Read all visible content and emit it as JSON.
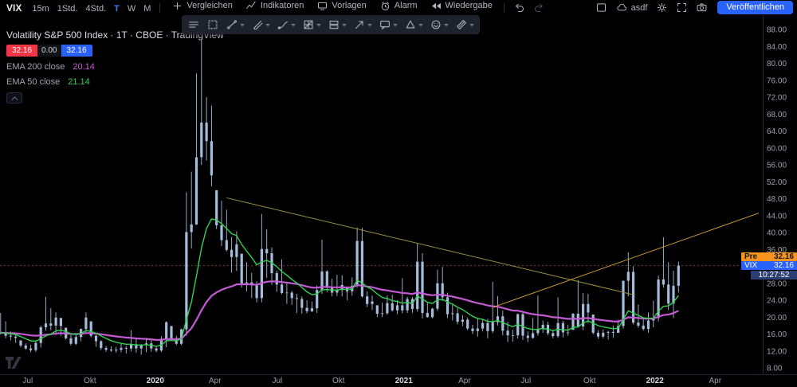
{
  "header": {
    "symbol": "VIX",
    "timeframes": [
      {
        "label": "15m",
        "active": false
      },
      {
        "label": "1Std.",
        "active": false
      },
      {
        "label": "4Std.",
        "active": false
      },
      {
        "label": "T",
        "active": true
      },
      {
        "label": "W",
        "active": false
      },
      {
        "label": "M",
        "active": false
      }
    ],
    "menu": [
      {
        "name": "compare-button",
        "icon": "compare-icon",
        "label": "Vergleichen"
      },
      {
        "name": "indicators-button",
        "icon": "indicators-icon",
        "label": "Indikatoren"
      },
      {
        "name": "templates-button",
        "icon": "templates-icon",
        "label": "Vorlagen"
      },
      {
        "name": "alert-button",
        "icon": "alarm-icon",
        "label": "Alarm"
      },
      {
        "name": "replay-button",
        "icon": "replay-icon",
        "label": "Wiedergabe"
      }
    ],
    "layout_name": "asdf",
    "publish_label": "Veröffentlichen"
  },
  "legend": {
    "title": "Volatility S&P 500 Index · 1T · CBOE · TradingView",
    "sell_price": "32.16",
    "spread": "0.00",
    "buy_price": "32.16",
    "ema200_label": "EMA 200 close",
    "ema200_value": "20.14",
    "ema50_label": "EMA 50 close",
    "ema50_value": "21.14"
  },
  "float_toolbar": {
    "tools": [
      {
        "icon": "lines-menu-icon",
        "name": "line-tools-button",
        "caret": false
      },
      {
        "icon": "marquee-icon",
        "name": "selection-tool-button",
        "caret": false
      },
      {
        "icon": "trendline-icon",
        "name": "trendline-tool-button",
        "caret": true
      },
      {
        "icon": "pitchfork-icon",
        "name": "pitchfork-tool-button",
        "caret": true
      },
      {
        "icon": "brush-icon",
        "name": "brush-tool-button",
        "caret": true
      },
      {
        "icon": "gann-icon",
        "name": "gann-tool-button",
        "caret": true
      },
      {
        "icon": "position-icon",
        "name": "position-tool-button",
        "caret": true
      },
      {
        "icon": "arrow-icon",
        "name": "arrow-tool-button",
        "caret": true
      },
      {
        "icon": "callout-icon",
        "name": "annotation-tool-button",
        "caret": true
      },
      {
        "icon": "shapes-icon",
        "name": "shapes-tool-button",
        "caret": true
      },
      {
        "icon": "emoji-icon",
        "name": "emoji-tool-button",
        "caret": true
      },
      {
        "icon": "measure-icon",
        "name": "measure-tool-button",
        "caret": true
      }
    ]
  },
  "price_scale": {
    "pre_label": "Pre",
    "pre_value": "32.16",
    "symbol_label": "VIX",
    "last_value": "32.16",
    "countdown": "10:27:52",
    "ticks": [
      "88.00",
      "84.00",
      "80.00",
      "76.00",
      "72.00",
      "68.00",
      "64.00",
      "60.00",
      "56.00",
      "52.00",
      "48.00",
      "44.00",
      "40.00",
      "36.00",
      "32.00",
      "28.00",
      "24.00",
      "20.00",
      "16.00",
      "12.00",
      "8.00"
    ]
  },
  "time_scale": {
    "ticks": [
      {
        "label": "Jul",
        "i": 1.4,
        "major": false
      },
      {
        "label": "Okt",
        "i": 13.8,
        "major": false
      },
      {
        "label": "2020",
        "i": 26.8,
        "major": true
      },
      {
        "label": "Apr",
        "i": 38.7,
        "major": false
      },
      {
        "label": "Jul",
        "i": 51.1,
        "major": false
      },
      {
        "label": "Okt",
        "i": 63.3,
        "major": false
      },
      {
        "label": "2021",
        "i": 76.3,
        "major": true
      },
      {
        "label": "Apr",
        "i": 88.4,
        "major": false
      },
      {
        "label": "Jul",
        "i": 100.6,
        "major": false
      },
      {
        "label": "Okt",
        "i": 113.3,
        "major": false
      },
      {
        "label": "2022",
        "i": 126.3,
        "major": true
      },
      {
        "label": "Apr",
        "i": 138.3,
        "major": false
      }
    ]
  },
  "colors": {
    "accent_blue": "#2962ff",
    "sell_red": "#f23645",
    "candle": "#a5bddc",
    "ema_fast_green": "#2fd350",
    "ema_slow_purple": "#c45bd4",
    "trend_desc_olive": "#9a8f3e",
    "trend_asc_orange": "#c9992e",
    "pre_badge_orange": "#f7941d",
    "price_line_red": "#84333d",
    "countdown_bg": "#2c3e73"
  },
  "chart_data": {
    "type": "candlestick",
    "symbol": "VIX",
    "title": "Volatility S&P 500 Index",
    "interval": "1T",
    "exchange": "CBOE",
    "last_price": 32.16,
    "price_axis": {
      "min": 8,
      "max": 88,
      "tick_step": 4
    },
    "start_index": -4,
    "candles": [
      [
        21.0,
        15.9,
        16.3
      ],
      [
        19.0,
        15.0,
        15.6
      ],
      [
        16.6,
        14.5,
        15.4
      ],
      [
        16.3,
        13.9,
        15.1
      ],
      [
        14.5,
        12.9,
        13.3
      ],
      [
        13.8,
        12.3,
        12.6
      ],
      [
        13.5,
        11.7,
        12.2
      ],
      [
        14.3,
        11.8,
        13.9
      ],
      [
        18.0,
        12.8,
        17.6
      ],
      [
        24.8,
        16.8,
        18.5
      ],
      [
        22.1,
        16.9,
        18.0
      ],
      [
        21.1,
        15.8,
        19.9
      ],
      [
        19.8,
        15.6,
        17.9
      ],
      [
        17.5,
        14.7,
        15.0
      ],
      [
        15.8,
        13.3,
        13.7
      ],
      [
        15.9,
        13.4,
        15.3
      ],
      [
        17.3,
        14.3,
        17.2
      ],
      [
        21.1,
        16.2,
        19.9
      ],
      [
        19.0,
        15.2,
        15.6
      ],
      [
        15.8,
        13.0,
        14.3
      ],
      [
        14.6,
        12.2,
        12.7
      ],
      [
        13.2,
        11.8,
        12.3
      ],
      [
        13.1,
        11.8,
        12.1
      ],
      [
        13.0,
        11.6,
        12.3
      ],
      [
        13.7,
        11.7,
        12.7
      ],
      [
        13.2,
        11.4,
        12.6
      ],
      [
        16.9,
        11.9,
        13.6
      ],
      [
        14.9,
        11.6,
        12.6
      ],
      [
        13.6,
        11.1,
        13.4
      ],
      [
        15.1,
        11.7,
        13.8
      ],
      [
        14.6,
        11.8,
        12.6
      ],
      [
        13.1,
        11.7,
        12.1
      ],
      [
        15.5,
        11.8,
        14.9
      ],
      [
        19.0,
        12.9,
        18.8
      ],
      [
        17.9,
        14.6,
        15.0
      ],
      [
        15.6,
        13.4,
        13.7
      ],
      [
        17.3,
        13.4,
        17.1
      ],
      [
        49.5,
        15.6,
        40.1
      ],
      [
        54.4,
        36.2,
        41.9
      ],
      [
        77.6,
        41.8,
        57.8
      ],
      [
        85.5,
        56.0,
        66.0
      ],
      [
        72.0,
        57.0,
        61.6
      ],
      [
        70.0,
        50.9,
        53.5
      ],
      [
        50.0,
        40.8,
        41.7
      ],
      [
        47.5,
        36.8,
        38.2
      ],
      [
        45.4,
        35.5,
        35.9
      ],
      [
        39.0,
        30.5,
        34.2
      ],
      [
        40.3,
        30.9,
        37.2
      ],
      [
        35.0,
        27.0,
        28.0
      ],
      [
        33.0,
        26.1,
        28.2
      ],
      [
        30.5,
        24.5,
        27.5
      ],
      [
        28.5,
        23.5,
        24.5
      ],
      [
        44.4,
        23.5,
        36.1
      ],
      [
        40.8,
        29.3,
        35.1
      ],
      [
        36.5,
        27.6,
        30.4
      ],
      [
        31.0,
        26.0,
        27.7
      ],
      [
        33.7,
        25.4,
        25.7
      ],
      [
        28.3,
        23.1,
        25.8
      ],
      [
        26.2,
        22.9,
        24.5
      ],
      [
        25.5,
        21.0,
        24.3
      ],
      [
        24.9,
        20.8,
        22.2
      ],
      [
        24.0,
        20.9,
        21.4
      ],
      [
        23.7,
        21.2,
        22.1
      ],
      [
        27.5,
        21.0,
        26.4
      ],
      [
        38.3,
        25.5,
        30.8
      ],
      [
        31.1,
        25.9,
        26.9
      ],
      [
        29.1,
        24.9,
        25.8
      ],
      [
        30.0,
        25.0,
        26.4
      ],
      [
        29.9,
        24.9,
        27.6
      ],
      [
        27.2,
        24.0,
        26.1
      ],
      [
        29.4,
        25.1,
        27.4
      ],
      [
        41.2,
        27.0,
        38.0
      ],
      [
        41.1,
        24.6,
        24.9
      ],
      [
        26.1,
        22.4,
        23.1
      ],
      [
        25.1,
        21.7,
        23.7
      ],
      [
        22.8,
        20.0,
        20.8
      ],
      [
        23.4,
        20.0,
        20.9
      ],
      [
        25.1,
        20.6,
        23.3
      ],
      [
        25.3,
        21.3,
        21.6
      ],
      [
        24.0,
        20.7,
        22.8
      ],
      [
        29.2,
        20.9,
        21.6
      ],
      [
        24.8,
        21.0,
        24.3
      ],
      [
        24.8,
        21.0,
        21.9
      ],
      [
        37.5,
        21.3,
        33.1
      ],
      [
        35.1,
        19.7,
        21.0
      ],
      [
        23.6,
        19.9,
        20.0
      ],
      [
        22.2,
        19.7,
        22.0
      ],
      [
        31.2,
        21.5,
        28.0
      ],
      [
        31.9,
        23.8,
        24.7
      ],
      [
        25.8,
        19.8,
        20.7
      ],
      [
        23.1,
        19.2,
        20.9
      ],
      [
        22.1,
        18.3,
        18.9
      ],
      [
        20.5,
        17.9,
        19.4
      ],
      [
        19.9,
        16.9,
        17.3
      ],
      [
        18.2,
        16.0,
        16.7
      ],
      [
        19.8,
        15.4,
        17.3
      ],
      [
        19.6,
        16.6,
        18.6
      ],
      [
        19.6,
        15.0,
        16.7
      ],
      [
        28.4,
        16.2,
        18.8
      ],
      [
        25.0,
        18.0,
        20.2
      ],
      [
        21.6,
        15.7,
        16.8
      ],
      [
        18.9,
        14.1,
        15.7
      ],
      [
        17.0,
        14.2,
        15.7
      ],
      [
        20.9,
        14.9,
        20.7
      ],
      [
        21.0,
        14.6,
        15.6
      ],
      [
        16.6,
        14.1,
        15.1
      ],
      [
        19.8,
        14.9,
        16.2
      ],
      [
        25.1,
        15.6,
        17.2
      ],
      [
        19.2,
        16.3,
        18.2
      ],
      [
        18.9,
        15.7,
        16.2
      ],
      [
        17.0,
        15.0,
        15.5
      ],
      [
        24.7,
        15.1,
        18.6
      ],
      [
        19.1,
        15.2,
        16.4
      ],
      [
        18.2,
        15.6,
        16.4
      ],
      [
        21.0,
        17.0,
        20.8
      ],
      [
        28.8,
        17.6,
        17.8
      ],
      [
        25.7,
        16.9,
        23.1
      ],
      [
        25.5,
        18.6,
        21.1
      ],
      [
        20.6,
        15.9,
        16.3
      ],
      [
        16.9,
        14.9,
        15.4
      ],
      [
        17.1,
        15.0,
        16.3
      ],
      [
        16.8,
        14.7,
        16.5
      ],
      [
        18.0,
        15.1,
        16.3
      ],
      [
        19.4,
        16.3,
        17.9
      ],
      [
        28.6,
        17.3,
        28.6
      ],
      [
        35.3,
        24.9,
        30.7
      ],
      [
        32.0,
        18.3,
        18.7
      ],
      [
        23.0,
        17.5,
        18.0
      ],
      [
        19.7,
        16.8,
        17.2
      ],
      [
        21.1,
        16.3,
        19.2
      ],
      [
        23.9,
        17.6,
        19.8
      ],
      [
        29.8,
        19.0,
        28.9
      ],
      [
        38.9,
        27.0,
        27.7
      ],
      [
        33.0,
        21.7,
        23.2
      ],
      [
        31.0,
        19.8,
        27.4
      ],
      [
        33.1,
        25.8,
        32.16
      ]
    ],
    "ema_fast": {
      "label": "EMA 50",
      "value": 21.14,
      "period": 10,
      "color": "#2fd350"
    },
    "ema_slow": {
      "label": "EMA 200",
      "value": 20.14,
      "period": 40,
      "color": "#c45bd4"
    },
    "trendlines": [
      {
        "i1": 41,
        "p1": 48.2,
        "i2": 122,
        "p2": 25.3,
        "color": "#9a8f3e"
      },
      {
        "i1": 94,
        "p1": 22.3,
        "i2": 147,
        "p2": 44.6,
        "color": "#c9992e"
      }
    ],
    "price_line": {
      "value": 32.16,
      "color": "#84333d"
    }
  }
}
